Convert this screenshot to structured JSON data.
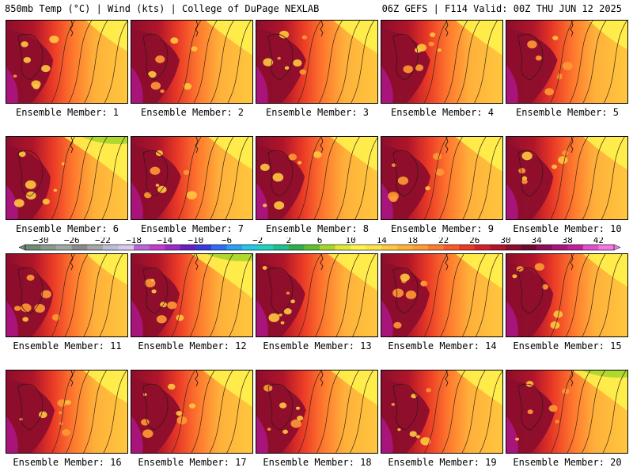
{
  "header": {
    "left": "850mb Temp (°C) | Wind (kts) | College of DuPage NEXLAB",
    "right": "06Z GEFS | F114 Valid: 00Z THU JUN 12 2025"
  },
  "caption_prefix": "Ensemble Member:",
  "members": [
    {
      "label": "Ensemble Member: 1"
    },
    {
      "label": "Ensemble Member: 2"
    },
    {
      "label": "Ensemble Member: 3"
    },
    {
      "label": "Ensemble Member: 4"
    },
    {
      "label": "Ensemble Member: 5"
    },
    {
      "label": "Ensemble Member: 6"
    },
    {
      "label": "Ensemble Member: 7"
    },
    {
      "label": "Ensemble Member: 8"
    },
    {
      "label": "Ensemble Member: 9"
    },
    {
      "label": "Ensemble Member: 10"
    },
    {
      "label": "Ensemble Member: 11"
    },
    {
      "label": "Ensemble Member: 12"
    },
    {
      "label": "Ensemble Member: 13"
    },
    {
      "label": "Ensemble Member: 14"
    },
    {
      "label": "Ensemble Member: 15"
    },
    {
      "label": "Ensemble Member: 16"
    },
    {
      "label": "Ensemble Member: 17"
    },
    {
      "label": "Ensemble Member: 18"
    },
    {
      "label": "Ensemble Member: 19"
    },
    {
      "label": "Ensemble Member: 20"
    }
  ],
  "colorbar": {
    "min": -32,
    "max": 44,
    "step": 2,
    "labels": [
      "-30",
      "-26",
      "-22",
      "-18",
      "-14",
      "-10",
      "-6",
      "-2",
      "2",
      "6",
      "10",
      "14",
      "18",
      "22",
      "26",
      "30",
      "34",
      "38",
      "42"
    ],
    "colors": [
      "#6f8a75",
      "#8a9a8c",
      "#a0a8a2",
      "#8a8a8a",
      "#a6a6a6",
      "#bdbdd6",
      "#d9c7ec",
      "#b766d6",
      "#c33fc9",
      "#9a2cc6",
      "#6a1fc0",
      "#3b3bd8",
      "#2f6ef0",
      "#2aa0f2",
      "#26c6e6",
      "#22d0c0",
      "#1fbf8f",
      "#2fae4b",
      "#62c030",
      "#a6d62a",
      "#e0e83a",
      "#fff44d",
      "#ffe14a",
      "#ffc83e",
      "#ffb03a",
      "#ff9a34",
      "#ff7a2e",
      "#f85a28",
      "#ea3a26",
      "#d0222a",
      "#b0152a",
      "#8d0e2c",
      "#6d0a30",
      "#8e0d5a",
      "#a8147a",
      "#c0209a",
      "#e050c8",
      "#f17ae2"
    ]
  },
  "members_state": [
    {
      "n": 1,
      "hot": 0.55,
      "cool_ne": 0.2
    },
    {
      "n": 2,
      "hot": 0.6,
      "cool_ne": 0.3
    },
    {
      "n": 3,
      "hot": 0.65,
      "cool_ne": 0.25
    },
    {
      "n": 4,
      "hot": 0.62,
      "cool_ne": 0.3
    },
    {
      "n": 5,
      "hot": 0.7,
      "cool_ne": 0.15
    },
    {
      "n": 6,
      "hot": 0.45,
      "cool_ne": 0.6
    },
    {
      "n": 7,
      "hot": 0.65,
      "cool_ne": 0.25
    },
    {
      "n": 8,
      "hot": 0.6,
      "cool_ne": 0.3
    },
    {
      "n": 9,
      "hot": 0.63,
      "cool_ne": 0.3
    },
    {
      "n": 10,
      "hot": 0.55,
      "cool_ne": 0.25
    },
    {
      "n": 11,
      "hot": 0.55,
      "cool_ne": 0.2
    },
    {
      "n": 12,
      "hot": 0.6,
      "cool_ne": 0.55
    },
    {
      "n": 13,
      "hot": 0.62,
      "cool_ne": 0.35
    },
    {
      "n": 14,
      "hot": 0.6,
      "cool_ne": 0.3
    },
    {
      "n": 15,
      "hot": 0.55,
      "cool_ne": 0.25
    },
    {
      "n": 16,
      "hot": 0.6,
      "cool_ne": 0.25
    },
    {
      "n": 17,
      "hot": 0.63,
      "cool_ne": 0.35
    },
    {
      "n": 18,
      "hot": 0.65,
      "cool_ne": 0.3
    },
    {
      "n": 19,
      "hot": 0.6,
      "cool_ne": 0.3
    },
    {
      "n": 20,
      "hot": 0.62,
      "cool_ne": 0.45
    }
  ]
}
